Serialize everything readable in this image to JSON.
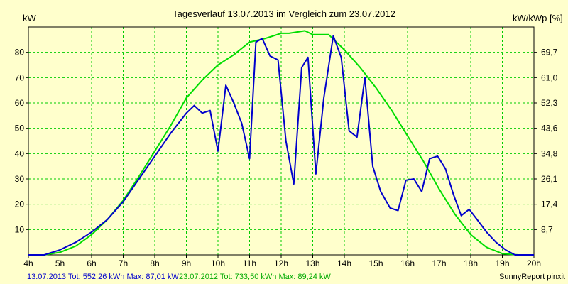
{
  "chart_data": {
    "type": "line",
    "title": "Tagesverlauf 13.07.2013 im Vergleich zum 23.07.2012",
    "ylabel_left": "kW",
    "ylabel_right": "kW/kWp [%]",
    "x_ticks": [
      "4h",
      "5h",
      "6h",
      "7h",
      "8h",
      "9h",
      "10h",
      "11h",
      "12h",
      "13h",
      "14h",
      "15h",
      "16h",
      "17h",
      "18h",
      "19h",
      "20h"
    ],
    "x_range": [
      4,
      20
    ],
    "ylim": [
      0,
      90
    ],
    "y_ticks_left": [
      "10",
      "20",
      "30",
      "40",
      "50",
      "60",
      "70",
      "80"
    ],
    "y_ticks_right": [
      "8,7",
      "17,4",
      "26,1",
      "34,8",
      "43,6",
      "52,3",
      "61,0",
      "69,7"
    ],
    "grid": true,
    "colors": {
      "background": "#ffffcc",
      "grid": "#00cc00",
      "series_2013": "#0000cc",
      "series_2012": "#00dd00",
      "axis": "#000000"
    },
    "series": [
      {
        "key": "s2013",
        "x": [
          4.0,
          4.5,
          5.0,
          5.5,
          6.0,
          6.5,
          7.0,
          7.5,
          8.0,
          8.5,
          9.0,
          9.25,
          9.5,
          9.75,
          10.0,
          10.25,
          10.5,
          10.75,
          11.0,
          11.2,
          11.4,
          11.65,
          11.9,
          12.15,
          12.4,
          12.65,
          12.85,
          13.1,
          13.35,
          13.65,
          13.9,
          14.15,
          14.4,
          14.65,
          14.9,
          15.15,
          15.45,
          15.7,
          15.95,
          16.2,
          16.45,
          16.7,
          16.95,
          17.2,
          17.45,
          17.7,
          17.95,
          18.2,
          18.5,
          18.8,
          19.1,
          19.4,
          19.7,
          20.0
        ],
        "y": [
          0,
          0,
          2,
          5,
          9,
          14,
          21,
          30,
          39,
          48,
          56,
          59,
          56,
          57,
          41,
          67,
          60,
          52,
          38,
          84,
          85.5,
          78.5,
          77,
          45,
          28,
          74,
          78,
          32,
          62,
          86.5,
          78,
          49,
          46.5,
          70,
          35,
          25,
          18.5,
          17.5,
          29.5,
          30,
          25,
          38,
          39,
          34,
          24,
          15.5,
          18,
          14,
          9,
          5,
          2,
          0,
          0,
          0
        ]
      },
      {
        "key": "s2012",
        "x": [
          4.0,
          4.5,
          5.0,
          5.5,
          6.0,
          6.5,
          7.0,
          7.5,
          8.0,
          8.5,
          9.0,
          9.5,
          10.0,
          10.5,
          11.0,
          11.5,
          12.0,
          12.25,
          12.5,
          12.75,
          13.0,
          13.5,
          14.0,
          14.5,
          15.0,
          15.5,
          16.0,
          16.5,
          17.0,
          17.5,
          18.0,
          18.5,
          19.0,
          19.5,
          20.0
        ],
        "y": [
          0,
          0,
          1,
          3.5,
          8,
          14,
          21.5,
          31,
          41,
          51,
          62,
          69,
          75,
          79,
          84,
          85.5,
          87.5,
          87.5,
          88,
          88.5,
          87,
          87,
          81,
          74,
          66,
          57,
          47,
          37,
          26,
          16,
          8,
          3,
          0.5,
          0,
          0
        ]
      }
    ],
    "footer": {
      "s2013_text": "13.07.2013 Tot: 552,26 kWh Max: 87,01 kW",
      "s2012_text": "23.07.2012 Tot: 733,50 kWh Max: 89,24 kW",
      "credit": "SunnyReport pinxit"
    }
  }
}
